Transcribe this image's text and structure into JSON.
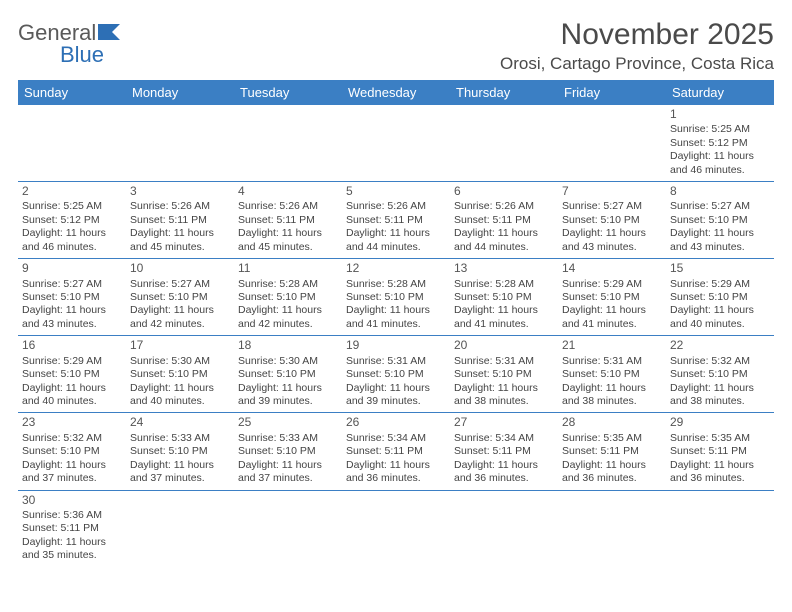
{
  "logo": {
    "textGen": "General",
    "textBlue": "Blue"
  },
  "header": {
    "title": "November 2025",
    "location": "Orosi, Cartago Province, Costa Rica"
  },
  "style": {
    "headerBg": "#3b7fc4",
    "headerFg": "#ffffff",
    "rowBorder": "#3b7fc4",
    "textColor": "#444444"
  },
  "daysOfWeek": [
    "Sunday",
    "Monday",
    "Tuesday",
    "Wednesday",
    "Thursday",
    "Friday",
    "Saturday"
  ],
  "weeks": [
    [
      null,
      null,
      null,
      null,
      null,
      null,
      {
        "n": "1",
        "sr": "5:25 AM",
        "ss": "5:12 PM",
        "dl": "11 hours and 46 minutes."
      }
    ],
    [
      {
        "n": "2",
        "sr": "5:25 AM",
        "ss": "5:12 PM",
        "dl": "11 hours and 46 minutes."
      },
      {
        "n": "3",
        "sr": "5:26 AM",
        "ss": "5:11 PM",
        "dl": "11 hours and 45 minutes."
      },
      {
        "n": "4",
        "sr": "5:26 AM",
        "ss": "5:11 PM",
        "dl": "11 hours and 45 minutes."
      },
      {
        "n": "5",
        "sr": "5:26 AM",
        "ss": "5:11 PM",
        "dl": "11 hours and 44 minutes."
      },
      {
        "n": "6",
        "sr": "5:26 AM",
        "ss": "5:11 PM",
        "dl": "11 hours and 44 minutes."
      },
      {
        "n": "7",
        "sr": "5:27 AM",
        "ss": "5:10 PM",
        "dl": "11 hours and 43 minutes."
      },
      {
        "n": "8",
        "sr": "5:27 AM",
        "ss": "5:10 PM",
        "dl": "11 hours and 43 minutes."
      }
    ],
    [
      {
        "n": "9",
        "sr": "5:27 AM",
        "ss": "5:10 PM",
        "dl": "11 hours and 43 minutes."
      },
      {
        "n": "10",
        "sr": "5:27 AM",
        "ss": "5:10 PM",
        "dl": "11 hours and 42 minutes."
      },
      {
        "n": "11",
        "sr": "5:28 AM",
        "ss": "5:10 PM",
        "dl": "11 hours and 42 minutes."
      },
      {
        "n": "12",
        "sr": "5:28 AM",
        "ss": "5:10 PM",
        "dl": "11 hours and 41 minutes."
      },
      {
        "n": "13",
        "sr": "5:28 AM",
        "ss": "5:10 PM",
        "dl": "11 hours and 41 minutes."
      },
      {
        "n": "14",
        "sr": "5:29 AM",
        "ss": "5:10 PM",
        "dl": "11 hours and 41 minutes."
      },
      {
        "n": "15",
        "sr": "5:29 AM",
        "ss": "5:10 PM",
        "dl": "11 hours and 40 minutes."
      }
    ],
    [
      {
        "n": "16",
        "sr": "5:29 AM",
        "ss": "5:10 PM",
        "dl": "11 hours and 40 minutes."
      },
      {
        "n": "17",
        "sr": "5:30 AM",
        "ss": "5:10 PM",
        "dl": "11 hours and 40 minutes."
      },
      {
        "n": "18",
        "sr": "5:30 AM",
        "ss": "5:10 PM",
        "dl": "11 hours and 39 minutes."
      },
      {
        "n": "19",
        "sr": "5:31 AM",
        "ss": "5:10 PM",
        "dl": "11 hours and 39 minutes."
      },
      {
        "n": "20",
        "sr": "5:31 AM",
        "ss": "5:10 PM",
        "dl": "11 hours and 38 minutes."
      },
      {
        "n": "21",
        "sr": "5:31 AM",
        "ss": "5:10 PM",
        "dl": "11 hours and 38 minutes."
      },
      {
        "n": "22",
        "sr": "5:32 AM",
        "ss": "5:10 PM",
        "dl": "11 hours and 38 minutes."
      }
    ],
    [
      {
        "n": "23",
        "sr": "5:32 AM",
        "ss": "5:10 PM",
        "dl": "11 hours and 37 minutes."
      },
      {
        "n": "24",
        "sr": "5:33 AM",
        "ss": "5:10 PM",
        "dl": "11 hours and 37 minutes."
      },
      {
        "n": "25",
        "sr": "5:33 AM",
        "ss": "5:10 PM",
        "dl": "11 hours and 37 minutes."
      },
      {
        "n": "26",
        "sr": "5:34 AM",
        "ss": "5:11 PM",
        "dl": "11 hours and 36 minutes."
      },
      {
        "n": "27",
        "sr": "5:34 AM",
        "ss": "5:11 PM",
        "dl": "11 hours and 36 minutes."
      },
      {
        "n": "28",
        "sr": "5:35 AM",
        "ss": "5:11 PM",
        "dl": "11 hours and 36 minutes."
      },
      {
        "n": "29",
        "sr": "5:35 AM",
        "ss": "5:11 PM",
        "dl": "11 hours and 36 minutes."
      }
    ],
    [
      {
        "n": "30",
        "sr": "5:36 AM",
        "ss": "5:11 PM",
        "dl": "11 hours and 35 minutes."
      },
      null,
      null,
      null,
      null,
      null,
      null
    ]
  ],
  "labels": {
    "sunrise": "Sunrise: ",
    "sunset": "Sunset: ",
    "daylight": "Daylight: "
  }
}
